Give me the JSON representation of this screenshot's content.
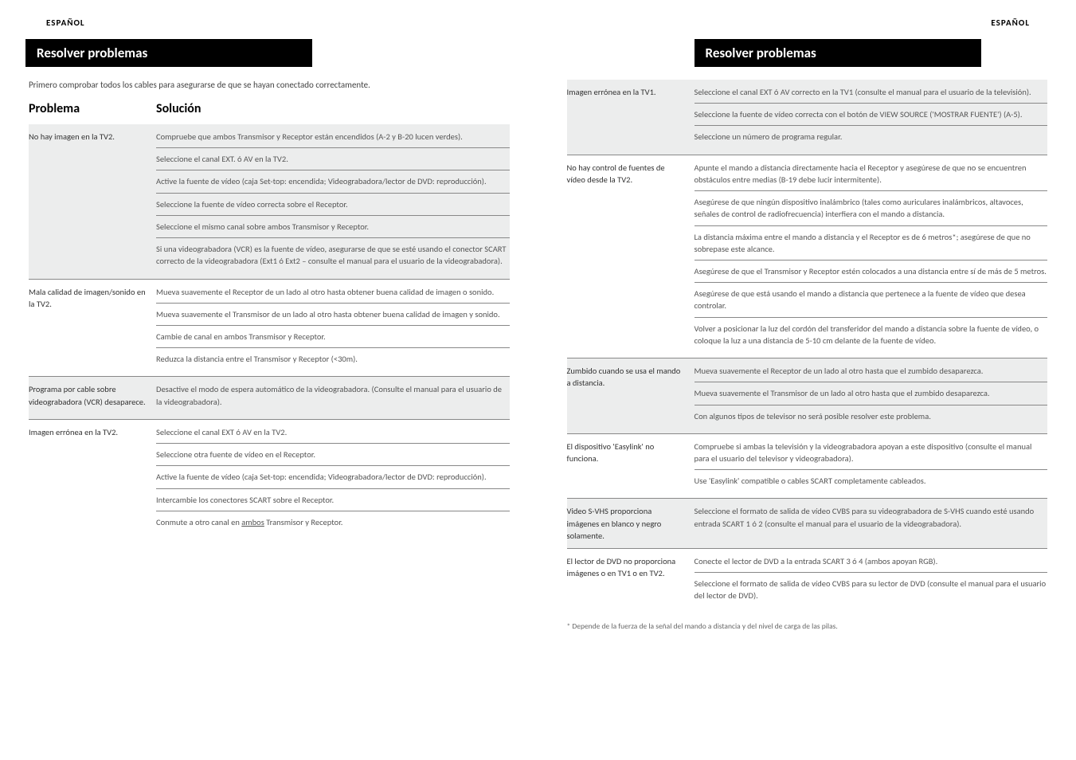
{
  "lang_label": "ESPAÑOL",
  "title": "Resolver problemas",
  "intro": "Primero comprobar todos los cables para asegurarse de que se hayan conectado correctamente.",
  "col_problem": "Problema",
  "col_solution": "Solución",
  "left_rows": [
    {
      "problem": "No hay imagen en la TV2.",
      "solutions": [
        "Compruebe que ambos Transmisor y Receptor están encendidos (A-2 y B-20 lucen verdes).",
        "Seleccione el canal EXT. ó AV en la TV2.",
        "Active la fuente de vídeo (caja Set-top: encendida; Videograbadora/lector de DVD: reproducción).",
        "Seleccione la fuente de vídeo correcta sobre el Receptor.",
        "Seleccione el mismo canal sobre ambos Transmisor y Receptor.",
        "Si una videograbadora (VCR) es la fuente de vídeo, asegurarse de que se esté usando el conector SCART correcto de la videograbadora (Ext1 ó Ext2 – consulte el manual para el usuario de la videograbadora)."
      ]
    },
    {
      "problem": "Mala calidad de imagen/sonido en la TV2.",
      "solutions": [
        "Mueva suavemente el Receptor de un lado al otro hasta obtener buena calidad de imagen o sonido.",
        "Mueva suavemente el Transmisor de un lado al otro hasta obtener buena calidad de imagen y sonido.",
        "Cambie de canal en ambos Transmisor y Receptor.",
        "Reduzca la distancia entre el Transmisor y Receptor (<30m)."
      ]
    },
    {
      "problem": "Programa por cable sobre videograbadora (VCR) desaparece.",
      "solutions": [
        "Desactive el modo de espera automático de la videograbadora. (Consulte el manual para el usuario de la videograbadora)."
      ]
    },
    {
      "problem": "Imagen errónea en la TV2.",
      "solutions": [
        "Seleccione el canal EXT ó AV en la TV2.",
        "Seleccione otra fuente de vídeo en el Receptor.",
        "Active la fuente de vídeo (caja Set-top: encendida; Videograbadora/lector de DVD: reproducción).",
        "Intercambie los conectores SCART sobre el Receptor.",
        "Conmute a otro canal en <span class=\"underline\">ambos</span> Transmisor y Receptor."
      ]
    }
  ],
  "right_rows": [
    {
      "problem": "Imagen errónea en la TV1.",
      "solutions": [
        "Seleccione el canal EXT ó AV correcto en la TV1 (consulte el manual para el usuario de la televisión).",
        "Seleccione la fuente de vídeo correcta con el botón de VIEW SOURCE ('MOSTRAR FUENTE') (A-5).",
        "Seleccione un número de programa regular."
      ]
    },
    {
      "problem": "No hay control de fuentes de vídeo desde la TV2.",
      "solutions": [
        "Apunte el mando a distancia directamente hacia el Receptor y asegúrese de que no se encuentren obstáculos entre medias (B-19 debe lucir intermitente).",
        "Asegúrese de que ningún dispositivo inalámbrico (tales como auriculares inalámbricos, altavoces, señales de control de radiofrecuencia) interfiera con el mando a distancia.",
        "La distancia máxima entre el mando a distancia y el Receptor es de 6 metros*; asegúrese de que no sobrepase este alcance.",
        "Asegúrese de que el Transmisor y Receptor estén colocados a una distancia entre sí de más de 5 metros.",
        "Asegúrese de que está usando el mando a distancia que pertenece a la fuente de vídeo que desea controlar.",
        "Volver a posicionar la luz del cordón del transferidor del mando a distancia sobre la fuente de vídeo, o coloque la luz a una distancia de 5-10 cm delante de la fuente de vídeo."
      ]
    },
    {
      "problem": "Zumbido cuando se usa el mando a distancia.",
      "solutions": [
        "Mueva suavemente el Receptor de un lado al otro hasta que el zumbido desaparezca.",
        "Mueva suavemente el Transmisor de un lado al otro hasta que el zumbido desaparezca.",
        "Con algunos tipos de televisor no será posible resolver este problema."
      ]
    },
    {
      "problem": "El dispositivo 'Easylink' no funciona.",
      "solutions": [
        "Compruebe si ambas la televisión y la videograbadora apoyan a este dispositivo (consulte el manual para el usuario del televisor y videograbadora).",
        "Use 'Easylink' compatible o cables SCART completamente cableados."
      ]
    },
    {
      "problem": "Video S-VHS proporciona imágenes en blanco y negro solamente.",
      "solutions": [
        "Seleccione el formato de salida de vídeo CVBS para su videograbadora de S-VHS cuando esté usando entrada SCART 1 ó 2 (consulte el manual para el usuario de la videograbadora)."
      ]
    },
    {
      "problem": "El lector de DVD no proporciona imágenes o en  TV1 o en TV2.",
      "solutions": [
        "Conecte el lector de DVD a la entrada SCART 3 ó 4 (ambos apoyan RGB).",
        "Seleccione el formato de salida de vídeo CVBS para su lector de DVD (consulte el manual para el usuario del lector de DVD)."
      ]
    }
  ],
  "footnote": "* Depende de la fuerza de la señal del mando a distancia y del nivel de carga de las pilas."
}
